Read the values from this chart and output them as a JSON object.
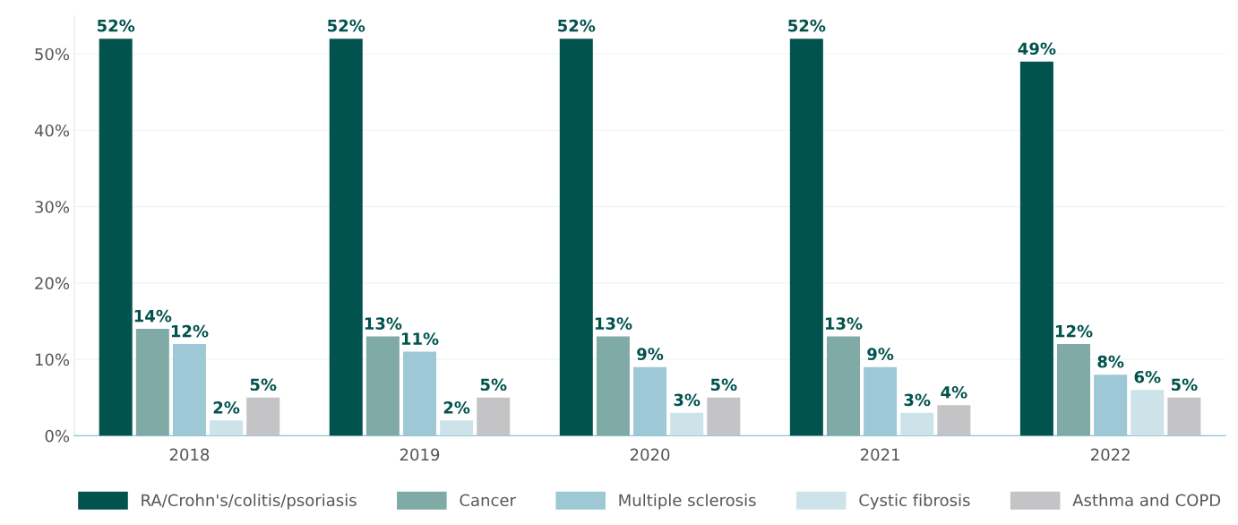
{
  "chart_data": {
    "type": "bar",
    "categories": [
      "2018",
      "2019",
      "2020",
      "2021",
      "2022"
    ],
    "series": [
      {
        "name": "RA/Crohn's/colitis/psoriasis",
        "color": "#02534e",
        "values": [
          52,
          52,
          52,
          52,
          49
        ],
        "value_labels": [
          "52%",
          "52%",
          "52%",
          "52%",
          "49%"
        ]
      },
      {
        "name": "Cancer",
        "color": "#80aaa6",
        "values": [
          14,
          13,
          13,
          13,
          12
        ],
        "value_labels": [
          "14%",
          "13%",
          "13%",
          "13%",
          "12%"
        ]
      },
      {
        "name": "Multiple sclerosis",
        "color": "#9ec8d6",
        "values": [
          12,
          11,
          9,
          9,
          8
        ],
        "value_labels": [
          "12%",
          "11%",
          "9%",
          "9%",
          "8%"
        ]
      },
      {
        "name": "Cystic fibrosis",
        "color": "#cde3ea",
        "values": [
          2,
          2,
          3,
          3,
          6
        ],
        "value_labels": [
          "2%",
          "2%",
          "3%",
          "3%",
          "6%"
        ]
      },
      {
        "name": "Asthma and COPD",
        "color": "#c4c4c6",
        "values": [
          5,
          5,
          5,
          4,
          5
        ],
        "value_labels": [
          "5%",
          "5%",
          "5%",
          "4%",
          "5%"
        ]
      }
    ],
    "ylim": [
      0,
      55
    ],
    "yticks": [
      {
        "value": 0,
        "label": "0%"
      },
      {
        "value": 10,
        "label": "10%"
      },
      {
        "value": 20,
        "label": "20%"
      },
      {
        "value": 30,
        "label": "30%"
      },
      {
        "value": 40,
        "label": "40%"
      },
      {
        "value": 50,
        "label": "50%"
      }
    ],
    "grid": "y",
    "legend": "bottom"
  }
}
